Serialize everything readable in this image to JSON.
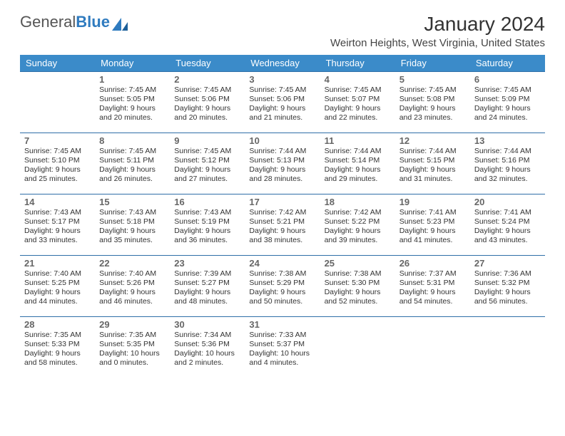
{
  "brand": {
    "word1": "General",
    "word2": "Blue"
  },
  "title": "January 2024",
  "location": "Weirton Heights, West Virginia, United States",
  "colors": {
    "header_bg": "#3b8bc9",
    "header_fg": "#ffffff",
    "row_border": "#2f6fa8",
    "brand_gray": "#555555",
    "brand_blue": "#2f7bbf"
  },
  "day_headers": [
    "Sunday",
    "Monday",
    "Tuesday",
    "Wednesday",
    "Thursday",
    "Friday",
    "Saturday"
  ],
  "weeks": [
    [
      null,
      {
        "n": "1",
        "sr": "Sunrise: 7:45 AM",
        "ss": "Sunset: 5:05 PM",
        "dl1": "Daylight: 9 hours",
        "dl2": "and 20 minutes."
      },
      {
        "n": "2",
        "sr": "Sunrise: 7:45 AM",
        "ss": "Sunset: 5:06 PM",
        "dl1": "Daylight: 9 hours",
        "dl2": "and 20 minutes."
      },
      {
        "n": "3",
        "sr": "Sunrise: 7:45 AM",
        "ss": "Sunset: 5:06 PM",
        "dl1": "Daylight: 9 hours",
        "dl2": "and 21 minutes."
      },
      {
        "n": "4",
        "sr": "Sunrise: 7:45 AM",
        "ss": "Sunset: 5:07 PM",
        "dl1": "Daylight: 9 hours",
        "dl2": "and 22 minutes."
      },
      {
        "n": "5",
        "sr": "Sunrise: 7:45 AM",
        "ss": "Sunset: 5:08 PM",
        "dl1": "Daylight: 9 hours",
        "dl2": "and 23 minutes."
      },
      {
        "n": "6",
        "sr": "Sunrise: 7:45 AM",
        "ss": "Sunset: 5:09 PM",
        "dl1": "Daylight: 9 hours",
        "dl2": "and 24 minutes."
      }
    ],
    [
      {
        "n": "7",
        "sr": "Sunrise: 7:45 AM",
        "ss": "Sunset: 5:10 PM",
        "dl1": "Daylight: 9 hours",
        "dl2": "and 25 minutes."
      },
      {
        "n": "8",
        "sr": "Sunrise: 7:45 AM",
        "ss": "Sunset: 5:11 PM",
        "dl1": "Daylight: 9 hours",
        "dl2": "and 26 minutes."
      },
      {
        "n": "9",
        "sr": "Sunrise: 7:45 AM",
        "ss": "Sunset: 5:12 PM",
        "dl1": "Daylight: 9 hours",
        "dl2": "and 27 minutes."
      },
      {
        "n": "10",
        "sr": "Sunrise: 7:44 AM",
        "ss": "Sunset: 5:13 PM",
        "dl1": "Daylight: 9 hours",
        "dl2": "and 28 minutes."
      },
      {
        "n": "11",
        "sr": "Sunrise: 7:44 AM",
        "ss": "Sunset: 5:14 PM",
        "dl1": "Daylight: 9 hours",
        "dl2": "and 29 minutes."
      },
      {
        "n": "12",
        "sr": "Sunrise: 7:44 AM",
        "ss": "Sunset: 5:15 PM",
        "dl1": "Daylight: 9 hours",
        "dl2": "and 31 minutes."
      },
      {
        "n": "13",
        "sr": "Sunrise: 7:44 AM",
        "ss": "Sunset: 5:16 PM",
        "dl1": "Daylight: 9 hours",
        "dl2": "and 32 minutes."
      }
    ],
    [
      {
        "n": "14",
        "sr": "Sunrise: 7:43 AM",
        "ss": "Sunset: 5:17 PM",
        "dl1": "Daylight: 9 hours",
        "dl2": "and 33 minutes."
      },
      {
        "n": "15",
        "sr": "Sunrise: 7:43 AM",
        "ss": "Sunset: 5:18 PM",
        "dl1": "Daylight: 9 hours",
        "dl2": "and 35 minutes."
      },
      {
        "n": "16",
        "sr": "Sunrise: 7:43 AM",
        "ss": "Sunset: 5:19 PM",
        "dl1": "Daylight: 9 hours",
        "dl2": "and 36 minutes."
      },
      {
        "n": "17",
        "sr": "Sunrise: 7:42 AM",
        "ss": "Sunset: 5:21 PM",
        "dl1": "Daylight: 9 hours",
        "dl2": "and 38 minutes."
      },
      {
        "n": "18",
        "sr": "Sunrise: 7:42 AM",
        "ss": "Sunset: 5:22 PM",
        "dl1": "Daylight: 9 hours",
        "dl2": "and 39 minutes."
      },
      {
        "n": "19",
        "sr": "Sunrise: 7:41 AM",
        "ss": "Sunset: 5:23 PM",
        "dl1": "Daylight: 9 hours",
        "dl2": "and 41 minutes."
      },
      {
        "n": "20",
        "sr": "Sunrise: 7:41 AM",
        "ss": "Sunset: 5:24 PM",
        "dl1": "Daylight: 9 hours",
        "dl2": "and 43 minutes."
      }
    ],
    [
      {
        "n": "21",
        "sr": "Sunrise: 7:40 AM",
        "ss": "Sunset: 5:25 PM",
        "dl1": "Daylight: 9 hours",
        "dl2": "and 44 minutes."
      },
      {
        "n": "22",
        "sr": "Sunrise: 7:40 AM",
        "ss": "Sunset: 5:26 PM",
        "dl1": "Daylight: 9 hours",
        "dl2": "and 46 minutes."
      },
      {
        "n": "23",
        "sr": "Sunrise: 7:39 AM",
        "ss": "Sunset: 5:27 PM",
        "dl1": "Daylight: 9 hours",
        "dl2": "and 48 minutes."
      },
      {
        "n": "24",
        "sr": "Sunrise: 7:38 AM",
        "ss": "Sunset: 5:29 PM",
        "dl1": "Daylight: 9 hours",
        "dl2": "and 50 minutes."
      },
      {
        "n": "25",
        "sr": "Sunrise: 7:38 AM",
        "ss": "Sunset: 5:30 PM",
        "dl1": "Daylight: 9 hours",
        "dl2": "and 52 minutes."
      },
      {
        "n": "26",
        "sr": "Sunrise: 7:37 AM",
        "ss": "Sunset: 5:31 PM",
        "dl1": "Daylight: 9 hours",
        "dl2": "and 54 minutes."
      },
      {
        "n": "27",
        "sr": "Sunrise: 7:36 AM",
        "ss": "Sunset: 5:32 PM",
        "dl1": "Daylight: 9 hours",
        "dl2": "and 56 minutes."
      }
    ],
    [
      {
        "n": "28",
        "sr": "Sunrise: 7:35 AM",
        "ss": "Sunset: 5:33 PM",
        "dl1": "Daylight: 9 hours",
        "dl2": "and 58 minutes."
      },
      {
        "n": "29",
        "sr": "Sunrise: 7:35 AM",
        "ss": "Sunset: 5:35 PM",
        "dl1": "Daylight: 10 hours",
        "dl2": "and 0 minutes."
      },
      {
        "n": "30",
        "sr": "Sunrise: 7:34 AM",
        "ss": "Sunset: 5:36 PM",
        "dl1": "Daylight: 10 hours",
        "dl2": "and 2 minutes."
      },
      {
        "n": "31",
        "sr": "Sunrise: 7:33 AM",
        "ss": "Sunset: 5:37 PM",
        "dl1": "Daylight: 10 hours",
        "dl2": "and 4 minutes."
      },
      null,
      null,
      null
    ]
  ]
}
